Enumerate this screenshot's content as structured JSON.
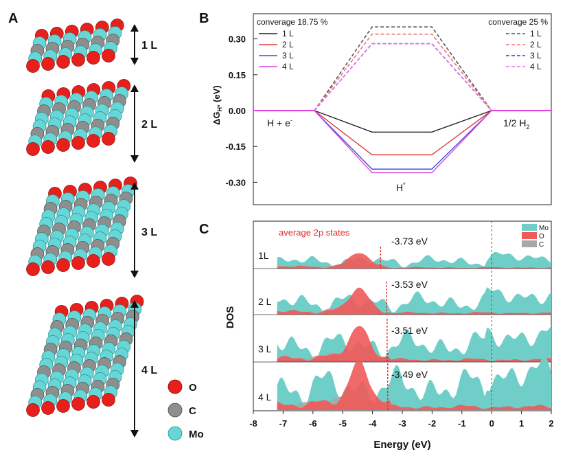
{
  "panels": {
    "a": "A",
    "b": "B",
    "c": "C"
  },
  "structures": {
    "layers": [
      "1 L",
      "2 L",
      "3 L",
      "4 L"
    ],
    "legend": [
      {
        "label": "O",
        "color": "#e8201c"
      },
      {
        "label": "C",
        "color": "#8e8e8e"
      },
      {
        "label": "Mo",
        "color": "#66d6d6"
      }
    ]
  },
  "chart_data": [
    {
      "panel": "B",
      "type": "line",
      "ylabel_main": "ΔG",
      "ylabel_sub": "H*",
      "ylabel_unit": " (eV)",
      "ylim": [
        -0.36,
        0.36
      ],
      "y_ticks": [
        "0.30",
        "0.15",
        "0.00",
        "-0.15",
        "-0.30"
      ],
      "y_tick_values": [
        0.3,
        0.15,
        0.0,
        -0.15,
        -0.3
      ],
      "state_labels": {
        "initial_main": "H + e",
        "initial_sup": "-",
        "final_main": "1/2 H",
        "final_sub": "2",
        "intermediate_main": "H",
        "intermediate_sup": "*"
      },
      "coverage_low_label": "converage 18.75 %",
      "coverage_high_label": "converage 25 %",
      "series_low": [
        {
          "name": "1 L",
          "color": "#222222",
          "value": -0.09
        },
        {
          "name": "2 L",
          "color": "#e03a3a",
          "value": -0.185
        },
        {
          "name": "3 L",
          "color": "#3a4fe0",
          "value": -0.245
        },
        {
          "name": "4 L",
          "color": "#e040e0",
          "value": -0.26
        }
      ],
      "series_high": [
        {
          "name": "1 L",
          "color": "#555555",
          "value": 0.35
        },
        {
          "name": "2 L",
          "color": "#f07070",
          "value": 0.32
        },
        {
          "name": "3 L",
          "color": "#3030d0",
          "value": 0.28
        },
        {
          "name": "4 L",
          "color": "#e070e0",
          "value": 0.28
        }
      ]
    },
    {
      "panel": "C",
      "type": "area",
      "xlabel": "Energy (eV)",
      "ylabel": "DOS",
      "xlim": [
        -8,
        2
      ],
      "x_ticks": [
        -8,
        -7,
        -6,
        -5,
        -4,
        -3,
        -2,
        -1,
        0,
        1,
        2
      ],
      "fermi_level": 0,
      "annotation": "average 2p states",
      "legend": [
        "Mo",
        "O",
        "C"
      ],
      "legend_colors": [
        "#6fcfc8",
        "#f05a5a",
        "#a8a8a8"
      ],
      "rows": [
        {
          "label": "1L",
          "center_label": "-3.73 eV",
          "center": -3.73
        },
        {
          "label": "2 L",
          "center_label": "-3.53 eV",
          "center": -3.53
        },
        {
          "label": "3 L",
          "center_label": "-3.51 eV",
          "center": -3.51
        },
        {
          "label": "4 L",
          "center_label": "-3.49 eV",
          "center": -3.49
        }
      ]
    }
  ]
}
